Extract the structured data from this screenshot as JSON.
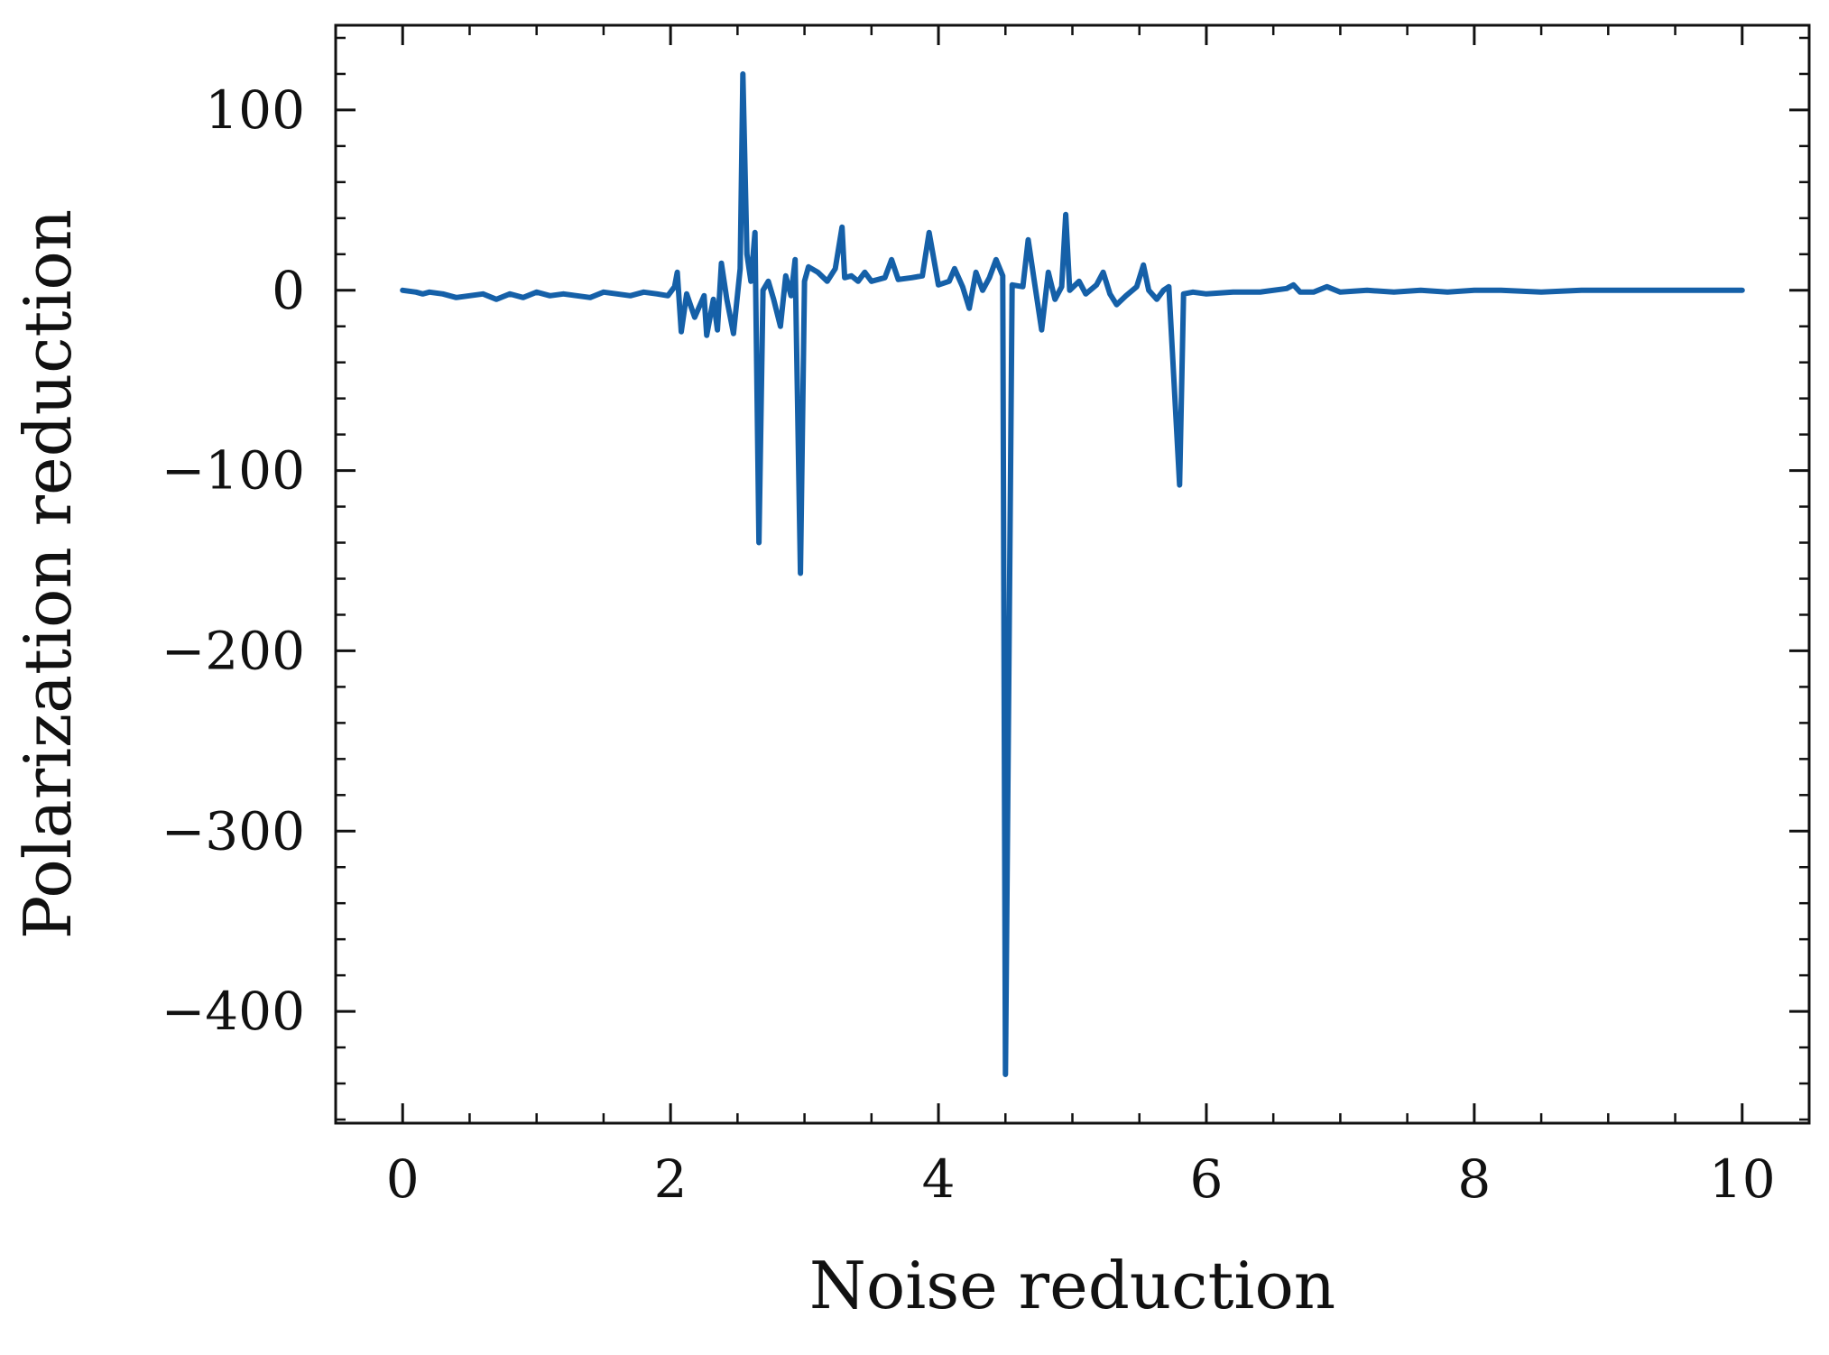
{
  "chart_data": {
    "type": "line",
    "title": "",
    "xlabel": "Noise reduction",
    "ylabel": "Polarization reduction",
    "xlim": [
      -0.5,
      10.5
    ],
    "ylim": [
      -462,
      147
    ],
    "x_ticks": [
      0,
      2,
      4,
      6,
      8,
      10
    ],
    "x_tick_labels": [
      "0",
      "2",
      "4",
      "6",
      "8",
      "10"
    ],
    "x_minor_step": 0.5,
    "y_ticks": [
      100,
      0,
      -100,
      -200,
      -300,
      -400
    ],
    "y_tick_labels": [
      "100",
      "0",
      "−100",
      "−200",
      "−300",
      "−400"
    ],
    "y_minor_step": 20,
    "grid": false,
    "line_color": "#1560a8",
    "series": [
      {
        "points": [
          [
            0.0,
            0
          ],
          [
            0.1,
            -1
          ],
          [
            0.15,
            -2
          ],
          [
            0.2,
            -1
          ],
          [
            0.3,
            -2
          ],
          [
            0.4,
            -4
          ],
          [
            0.5,
            -3
          ],
          [
            0.6,
            -2
          ],
          [
            0.7,
            -5
          ],
          [
            0.8,
            -2
          ],
          [
            0.9,
            -4
          ],
          [
            1.0,
            -1
          ],
          [
            1.1,
            -3
          ],
          [
            1.2,
            -2
          ],
          [
            1.3,
            -3
          ],
          [
            1.4,
            -4
          ],
          [
            1.5,
            -1
          ],
          [
            1.6,
            -2
          ],
          [
            1.7,
            -3
          ],
          [
            1.8,
            -1
          ],
          [
            1.9,
            -2
          ],
          [
            1.98,
            -3
          ],
          [
            2.03,
            2
          ],
          [
            2.05,
            10
          ],
          [
            2.08,
            -23
          ],
          [
            2.12,
            -2
          ],
          [
            2.18,
            -15
          ],
          [
            2.25,
            -3
          ],
          [
            2.27,
            -25
          ],
          [
            2.32,
            -5
          ],
          [
            2.35,
            -22
          ],
          [
            2.38,
            15
          ],
          [
            2.42,
            -5
          ],
          [
            2.47,
            -24
          ],
          [
            2.52,
            12
          ],
          [
            2.54,
            120
          ],
          [
            2.57,
            20
          ],
          [
            2.6,
            5
          ],
          [
            2.63,
            32
          ],
          [
            2.66,
            -140
          ],
          [
            2.69,
            0
          ],
          [
            2.73,
            5
          ],
          [
            2.77,
            -5
          ],
          [
            2.82,
            -20
          ],
          [
            2.86,
            8
          ],
          [
            2.9,
            -3
          ],
          [
            2.93,
            17
          ],
          [
            2.97,
            -157
          ],
          [
            3.0,
            5
          ],
          [
            3.03,
            13
          ],
          [
            3.1,
            10
          ],
          [
            3.17,
            5
          ],
          [
            3.23,
            12
          ],
          [
            3.28,
            35
          ],
          [
            3.3,
            7
          ],
          [
            3.35,
            8
          ],
          [
            3.4,
            5
          ],
          [
            3.45,
            10
          ],
          [
            3.5,
            5
          ],
          [
            3.6,
            7
          ],
          [
            3.65,
            17
          ],
          [
            3.7,
            6
          ],
          [
            3.8,
            7
          ],
          [
            3.88,
            8
          ],
          [
            3.93,
            32
          ],
          [
            4.0,
            3
          ],
          [
            4.08,
            5
          ],
          [
            4.12,
            12
          ],
          [
            4.18,
            2
          ],
          [
            4.23,
            -10
          ],
          [
            4.28,
            10
          ],
          [
            4.33,
            0
          ],
          [
            4.38,
            7
          ],
          [
            4.43,
            17
          ],
          [
            4.48,
            8
          ],
          [
            4.5,
            -435
          ],
          [
            4.55,
            3
          ],
          [
            4.63,
            2
          ],
          [
            4.67,
            28
          ],
          [
            4.72,
            3
          ],
          [
            4.77,
            -22
          ],
          [
            4.82,
            10
          ],
          [
            4.87,
            -5
          ],
          [
            4.92,
            2
          ],
          [
            4.95,
            42
          ],
          [
            4.98,
            0
          ],
          [
            5.05,
            5
          ],
          [
            5.1,
            -2
          ],
          [
            5.18,
            3
          ],
          [
            5.23,
            10
          ],
          [
            5.28,
            -2
          ],
          [
            5.33,
            -8
          ],
          [
            5.4,
            -3
          ],
          [
            5.48,
            2
          ],
          [
            5.53,
            14
          ],
          [
            5.57,
            0
          ],
          [
            5.63,
            -5
          ],
          [
            5.68,
            0
          ],
          [
            5.72,
            2
          ],
          [
            5.8,
            -108
          ],
          [
            5.83,
            -2
          ],
          [
            5.9,
            -1
          ],
          [
            6.0,
            -2
          ],
          [
            6.2,
            -1
          ],
          [
            6.4,
            -1
          ],
          [
            6.6,
            1
          ],
          [
            6.65,
            3
          ],
          [
            6.7,
            -1
          ],
          [
            6.8,
            -1
          ],
          [
            6.9,
            2
          ],
          [
            7.0,
            -1
          ],
          [
            7.2,
            0
          ],
          [
            7.4,
            -1
          ],
          [
            7.6,
            0
          ],
          [
            7.8,
            -1
          ],
          [
            8.0,
            0
          ],
          [
            8.2,
            0
          ],
          [
            8.5,
            -1
          ],
          [
            8.8,
            0
          ],
          [
            9.0,
            0
          ],
          [
            9.5,
            0
          ],
          [
            10.0,
            0
          ]
        ]
      }
    ]
  }
}
